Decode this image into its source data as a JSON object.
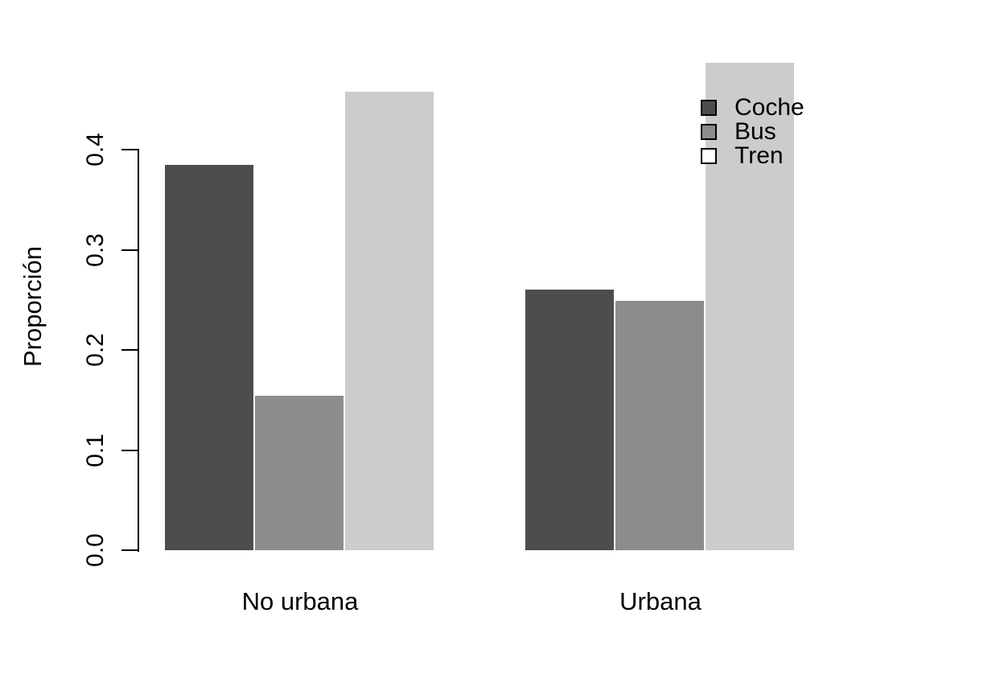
{
  "chart_data": {
    "type": "bar",
    "title": "",
    "xlabel": "",
    "ylabel": "Proporción",
    "categories": [
      "No urbana",
      "Urbana"
    ],
    "series": [
      {
        "name": "Coche",
        "color": "#4D4D4D",
        "values": [
          0.385,
          0.26
        ]
      },
      {
        "name": "Bus",
        "color": "#8C8C8C",
        "values": [
          0.154,
          0.249
        ]
      },
      {
        "name": "Tren",
        "color": "#CCCCCC",
        "values": [
          0.458,
          0.487
        ]
      }
    ],
    "ylim": [
      0,
      0.5
    ],
    "ytick_labels": [
      "0.0",
      "0.1",
      "0.2",
      "0.3",
      "0.4"
    ],
    "ytick_values": [
      0.0,
      0.1,
      0.2,
      0.3,
      0.4
    ],
    "grid": false,
    "bar_border": "none",
    "background_color": "#FFFFFF",
    "text_color": "#000000",
    "legend": {
      "position": "topright",
      "frame": "none",
      "entries": [
        {
          "label": "Coche",
          "swatch": "#4D4D4D"
        },
        {
          "label": "Bus",
          "swatch": "#8C8C8C"
        },
        {
          "label": "Tren",
          "swatch": "#FFFFFF"
        }
      ]
    }
  }
}
